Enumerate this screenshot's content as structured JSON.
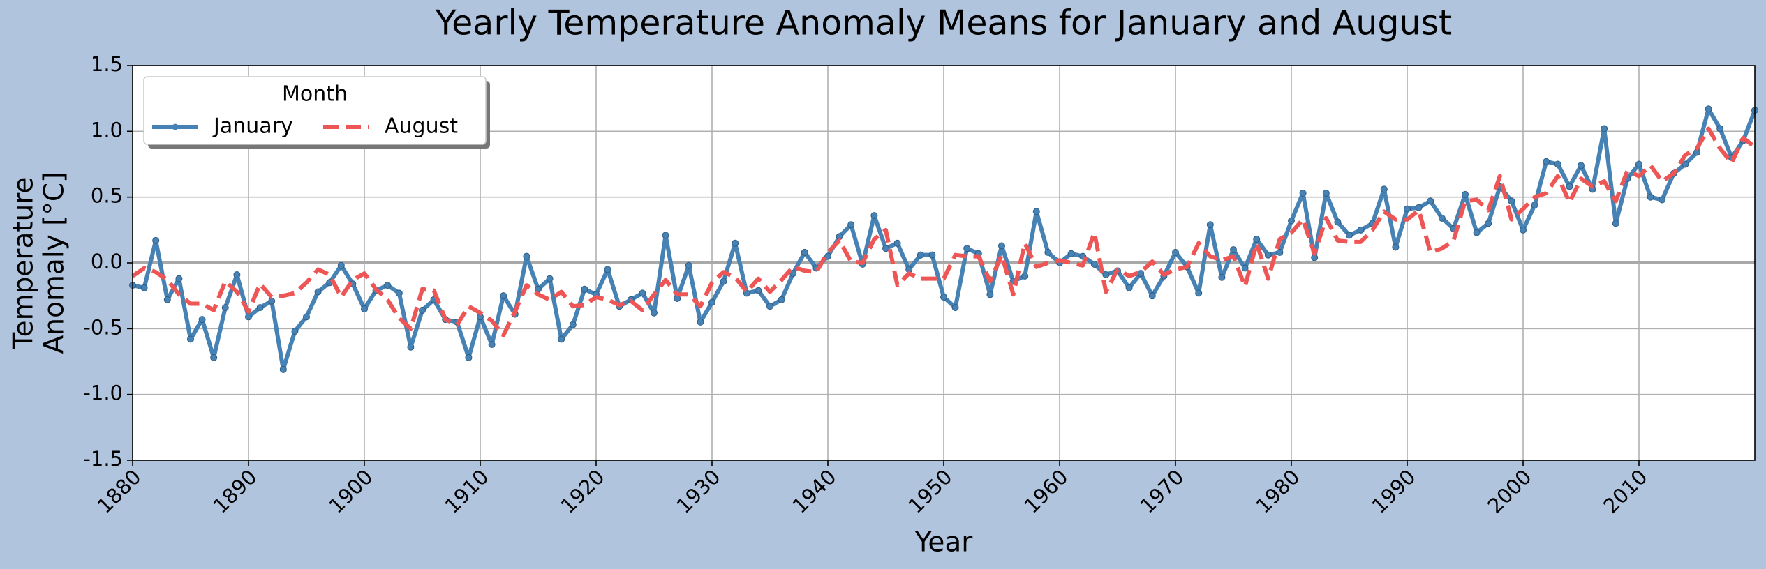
{
  "chart_data": {
    "type": "line",
    "title": "Yearly Temperature Anomaly Means for January and August",
    "xlabel": "Year",
    "ylabel": [
      "Temperature",
      "Anomaly [°C]"
    ],
    "x": [
      1880,
      1881,
      1882,
      1883,
      1884,
      1885,
      1886,
      1887,
      1888,
      1889,
      1890,
      1891,
      1892,
      1893,
      1894,
      1895,
      1896,
      1897,
      1898,
      1899,
      1900,
      1901,
      1902,
      1903,
      1904,
      1905,
      1906,
      1907,
      1908,
      1909,
      1910,
      1911,
      1912,
      1913,
      1914,
      1915,
      1916,
      1917,
      1918,
      1919,
      1920,
      1921,
      1922,
      1923,
      1924,
      1925,
      1926,
      1927,
      1928,
      1929,
      1930,
      1931,
      1932,
      1933,
      1934,
      1935,
      1936,
      1937,
      1938,
      1939,
      1940,
      1941,
      1942,
      1943,
      1944,
      1945,
      1946,
      1947,
      1948,
      1949,
      1950,
      1951,
      1952,
      1953,
      1954,
      1955,
      1956,
      1957,
      1958,
      1959,
      1960,
      1961,
      1962,
      1963,
      1964,
      1965,
      1966,
      1967,
      1968,
      1969,
      1970,
      1971,
      1972,
      1973,
      1974,
      1975,
      1976,
      1977,
      1978,
      1979,
      1980,
      1981,
      1982,
      1983,
      1984,
      1985,
      1986,
      1987,
      1988,
      1989,
      1990,
      1991,
      1992,
      1993,
      1994,
      1995,
      1996,
      1997,
      1998,
      1999,
      2000,
      2001,
      2002,
      2003,
      2004,
      2005,
      2006,
      2007,
      2008,
      2009,
      2010,
      2011,
      2012,
      2013,
      2014,
      2015,
      2016,
      2017,
      2018,
      2019,
      2020
    ],
    "series": [
      {
        "name": "January",
        "color": "#4682b4",
        "linestyle": "solid",
        "marker": "o",
        "values": [
          -0.17,
          -0.19,
          0.17,
          -0.28,
          -0.12,
          -0.58,
          -0.43,
          -0.72,
          -0.34,
          -0.09,
          -0.41,
          -0.34,
          -0.29,
          -0.81,
          -0.52,
          -0.41,
          -0.22,
          -0.15,
          -0.02,
          -0.16,
          -0.35,
          -0.21,
          -0.17,
          -0.23,
          -0.64,
          -0.36,
          -0.28,
          -0.43,
          -0.45,
          -0.72,
          -0.41,
          -0.62,
          -0.25,
          -0.39,
          0.05,
          -0.2,
          -0.12,
          -0.58,
          -0.47,
          -0.2,
          -0.24,
          -0.05,
          -0.33,
          -0.28,
          -0.23,
          -0.38,
          0.21,
          -0.27,
          -0.02,
          -0.45,
          -0.3,
          -0.14,
          0.15,
          -0.23,
          -0.21,
          -0.33,
          -0.28,
          -0.08,
          0.08,
          -0.04,
          0.05,
          0.2,
          0.29,
          -0.01,
          0.36,
          0.11,
          0.15,
          -0.05,
          0.06,
          0.06,
          -0.26,
          -0.34,
          0.11,
          0.07,
          -0.24,
          0.13,
          -0.14,
          -0.1,
          0.39,
          0.08,
          0.0,
          0.07,
          0.05,
          -0.01,
          -0.09,
          -0.06,
          -0.19,
          -0.08,
          -0.25,
          -0.1,
          0.08,
          -0.03,
          -0.23,
          0.29,
          -0.11,
          0.1,
          -0.04,
          0.18,
          0.06,
          0.08,
          0.32,
          0.53,
          0.04,
          0.53,
          0.31,
          0.21,
          0.25,
          0.3,
          0.56,
          0.12,
          0.41,
          0.42,
          0.47,
          0.34,
          0.26,
          0.52,
          0.23,
          0.3,
          0.58,
          0.47,
          0.25,
          0.44,
          0.77,
          0.75,
          0.58,
          0.74,
          0.56,
          1.02,
          0.3,
          0.64,
          0.75,
          0.5,
          0.48,
          0.68,
          0.75,
          0.84,
          1.17,
          1.02,
          0.8,
          0.93,
          1.16
        ]
      },
      {
        "name": "August",
        "color": "#ee5555",
        "linestyle": "dashed",
        "values": [
          -0.1,
          -0.04,
          -0.07,
          -0.13,
          -0.24,
          -0.31,
          -0.31,
          -0.36,
          -0.14,
          -0.22,
          -0.37,
          -0.16,
          -0.26,
          -0.25,
          -0.23,
          -0.15,
          -0.05,
          -0.09,
          -0.26,
          -0.13,
          -0.08,
          -0.2,
          -0.28,
          -0.42,
          -0.5,
          -0.2,
          -0.21,
          -0.43,
          -0.47,
          -0.33,
          -0.38,
          -0.44,
          -0.55,
          -0.37,
          -0.17,
          -0.24,
          -0.28,
          -0.22,
          -0.33,
          -0.32,
          -0.26,
          -0.28,
          -0.32,
          -0.29,
          -0.36,
          -0.24,
          -0.13,
          -0.24,
          -0.24,
          -0.33,
          -0.15,
          -0.07,
          -0.11,
          -0.22,
          -0.12,
          -0.22,
          -0.13,
          -0.03,
          -0.06,
          -0.07,
          0.08,
          0.17,
          0.01,
          0.0,
          0.18,
          0.25,
          -0.17,
          -0.08,
          -0.12,
          -0.12,
          -0.12,
          0.06,
          0.05,
          0.05,
          -0.14,
          0.06,
          -0.24,
          0.15,
          -0.03,
          0.0,
          0.02,
          0.0,
          -0.02,
          0.23,
          -0.22,
          -0.05,
          -0.1,
          -0.07,
          0.01,
          -0.09,
          -0.05,
          -0.03,
          0.15,
          0.05,
          0.02,
          0.05,
          -0.18,
          0.15,
          -0.12,
          0.18,
          0.23,
          0.33,
          0.07,
          0.34,
          0.17,
          0.16,
          0.16,
          0.25,
          0.39,
          0.33,
          0.33,
          0.4,
          0.08,
          0.11,
          0.17,
          0.47,
          0.48,
          0.4,
          0.66,
          0.33,
          0.41,
          0.5,
          0.53,
          0.66,
          0.46,
          0.64,
          0.58,
          0.62,
          0.47,
          0.7,
          0.66,
          0.74,
          0.62,
          0.68,
          0.82,
          0.87,
          1.02,
          0.87,
          0.76,
          0.95,
          0.88
        ]
      }
    ],
    "xlim": [
      1880,
      2020
    ],
    "xticks": [
      1880,
      1890,
      1900,
      1910,
      1920,
      1930,
      1940,
      1950,
      1960,
      1970,
      1980,
      1990,
      2000,
      2010
    ],
    "ylim": [
      -1.5,
      1.5
    ],
    "yticks": [
      {
        "value": -1.5,
        "label": "-1.5"
      },
      {
        "value": -1,
        "label": "-1.0"
      },
      {
        "value": -0.5,
        "label": "-0.5"
      },
      {
        "value": 0,
        "label": "0.0"
      },
      0.5,
      {
        "value": 1,
        "label": "1.0"
      },
      1.5
    ],
    "hline": 0,
    "grid": true,
    "legend": {
      "title": "Month",
      "loc": "upper left",
      "ncol": 2
    },
    "background": "#b0c4de"
  }
}
